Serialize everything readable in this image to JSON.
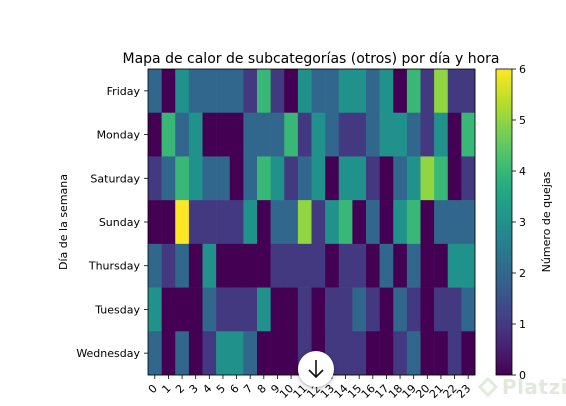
{
  "chart_data": {
    "type": "heatmap",
    "title": "Mapa de calor de subcategorías (otros) por día y hora",
    "xlabel": "",
    "ylabel": "Día de la semana",
    "colorbar_label": "Número de quejas",
    "colormap": "viridis",
    "vmin": 0,
    "vmax": 6,
    "colorbar_ticks": [
      "0",
      "1",
      "2",
      "3",
      "4",
      "5",
      "6"
    ],
    "x": [
      "0",
      "1",
      "2",
      "3",
      "4",
      "5",
      "6",
      "7",
      "8",
      "9",
      "10",
      "11",
      "12",
      "13",
      "14",
      "15",
      "16",
      "17",
      "18",
      "19",
      "20",
      "21",
      "22",
      "23"
    ],
    "y": [
      "Friday",
      "Monday",
      "Saturday",
      "Sunday",
      "Thursday",
      "Tuesday",
      "Wednesday"
    ],
    "values": [
      [
        2,
        0,
        3,
        2,
        2,
        2,
        2,
        1,
        4,
        1,
        0,
        3,
        2,
        2,
        3,
        3,
        2,
        3,
        0,
        4,
        1,
        5,
        1,
        1
      ],
      [
        0,
        4,
        2,
        3,
        0,
        0,
        0,
        2,
        2,
        2,
        4,
        1,
        3,
        2,
        1,
        1,
        2,
        3,
        3,
        2,
        1,
        3,
        0,
        4
      ],
      [
        1,
        2,
        4,
        3,
        2,
        2,
        0,
        2,
        4,
        3,
        1,
        2,
        3,
        0,
        3,
        3,
        1,
        0,
        2,
        3,
        5,
        4,
        0,
        1
      ],
      [
        0,
        0,
        6,
        1,
        1,
        1,
        1,
        3,
        0,
        2,
        2,
        5,
        1,
        3,
        4,
        0,
        2,
        0,
        3,
        4,
        0,
        2,
        2,
        2
      ],
      [
        2,
        1,
        2,
        0,
        3,
        0,
        0,
        0,
        0,
        1,
        1,
        1,
        1,
        0,
        1,
        1,
        0,
        2,
        0,
        2,
        0,
        0,
        3,
        3
      ],
      [
        3,
        0,
        0,
        0,
        2,
        1,
        1,
        1,
        3,
        0,
        0,
        1,
        0,
        1,
        1,
        2,
        1,
        0,
        2,
        1,
        0,
        1,
        1,
        2
      ],
      [
        2,
        0,
        2,
        0,
        1,
        3,
        3,
        2,
        0,
        0,
        0,
        1,
        0,
        1,
        1,
        1,
        0,
        0,
        1,
        2,
        0,
        0,
        1,
        0
      ]
    ]
  },
  "overlay": {
    "scroll_button_icon": "arrow-down-icon",
    "brand": "Platzi",
    "brand_color": "#98ca3f"
  }
}
